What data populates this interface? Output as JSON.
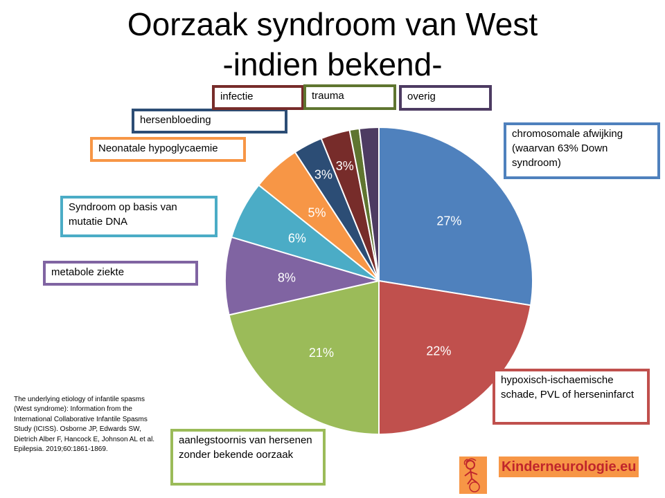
{
  "title_line1": "Oorzaak syndroom van West",
  "title_line2": "-indien bekend-",
  "chart_data": {
    "type": "pie",
    "title": "Oorzaak syndroom van West -indien bekend-",
    "slices": [
      {
        "label": "chromosomale afwijking (waarvan 63% Down syndroom)",
        "value": 27,
        "value_label": "27%",
        "color": "#4f81bd"
      },
      {
        "label": "hypoxisch-ischaemische schade, PVL of herseninfarct",
        "value": 22,
        "value_label": "22%",
        "color": "#c0504d"
      },
      {
        "label": "aanlegstoornis van hersenen zonder bekende oorzaak",
        "value": 21,
        "value_label": "21%",
        "color": "#9bbb59"
      },
      {
        "label": "metabole ziekte",
        "value": 8,
        "value_label": "8%",
        "color": "#8064a2"
      },
      {
        "label": "Syndroom op basis van mutatie DNA",
        "value": 6,
        "value_label": "6%",
        "color": "#4bacc6"
      },
      {
        "label": "Neonatale hypoglycaemie",
        "value": 5,
        "value_label": "5%",
        "color": "#f79646"
      },
      {
        "label": "hersenbloeding",
        "value": 3,
        "value_label": "3%",
        "color": "#2c4d75"
      },
      {
        "label": "infectie",
        "value": 3,
        "value_label": "3%",
        "color": "#772c2a"
      },
      {
        "label": "trauma",
        "value": 1,
        "value_label": "",
        "color": "#5f7530"
      },
      {
        "label": "overig",
        "value": 2,
        "value_label": "",
        "color": "#4d3b62"
      }
    ]
  },
  "labels": {
    "chromosomal": "chromosomale afwijking (waarvan 63% Down syndroom)",
    "hypoxic": " hypoxisch-ischaemische schade, PVL of herseninfarct",
    "malformation": "aanlegstoornis van hersenen zonder bekende oorzaak",
    "metabolic": "metabole ziekte",
    "mutation": "Syndroom op basis van mutatie DNA",
    "hypoglycaemia": "Neonatale hypoglycaemie",
    "hemorrhage": "hersenbloeding",
    "infection": "infectie",
    "trauma": "trauma",
    "other": "overig"
  },
  "citation": "The underlying etiology of infantile spasms (West syndrome): Information from the International Collaborative Infantile Spasms Study (ICISS). Osborne JP, Edwards SW, Dietrich Alber F, Hancock E, Johnson AL et al. Epilepsia. 2019;60:1861-1869.",
  "logo_text": "Kinderneurologie.eu",
  "colors": {
    "logo_bg": "#f79646",
    "logo_text": "#c0262c"
  }
}
